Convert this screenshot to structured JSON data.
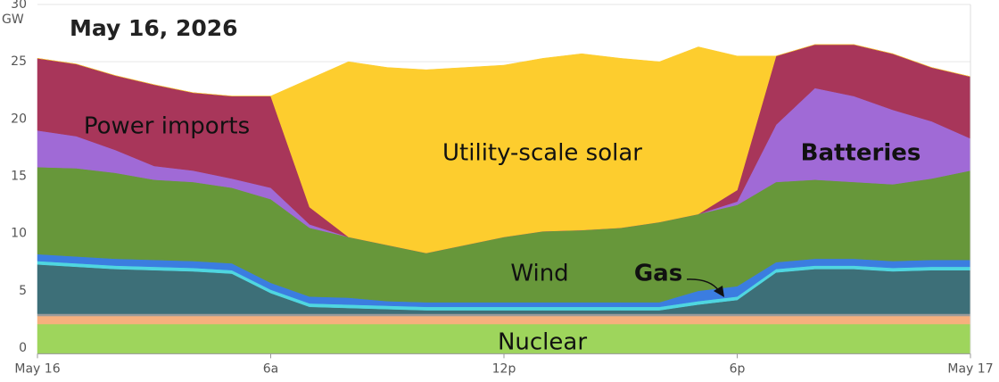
{
  "chart_data": {
    "type": "stacked-area",
    "title": "May 16, 2026",
    "y_unit": "GW",
    "x": [
      0,
      1,
      2,
      3,
      4,
      5,
      6,
      7,
      8,
      9,
      10,
      11,
      12,
      13,
      14,
      15,
      16,
      17,
      18,
      19,
      20,
      21,
      22,
      23,
      24
    ],
    "xlim": [
      0,
      24
    ],
    "xticks": [
      {
        "value": 0,
        "label": "May 16"
      },
      {
        "value": 6,
        "label": "6a"
      },
      {
        "value": 12,
        "label": "12p"
      },
      {
        "value": 18,
        "label": "6p"
      },
      {
        "value": 24,
        "label": "May 17"
      }
    ],
    "ylim": [
      -0.5,
      30
    ],
    "yticks": [
      0,
      5,
      10,
      15,
      20,
      25,
      30
    ],
    "grid": true,
    "series": [
      {
        "name": "Nuclear",
        "color": "#9ed55c",
        "values": [
          2.1,
          2.1,
          2.1,
          2.1,
          2.1,
          2.1,
          2.1,
          2.1,
          2.1,
          2.1,
          2.1,
          2.1,
          2.1,
          2.1,
          2.1,
          2.1,
          2.1,
          2.1,
          2.1,
          2.1,
          2.1,
          2.1,
          2.1,
          2.1,
          2.1
        ]
      },
      {
        "name": null,
        "color": "#f6b07e",
        "values": [
          0.7,
          0.7,
          0.7,
          0.7,
          0.7,
          0.7,
          0.7,
          0.7,
          0.7,
          0.7,
          0.7,
          0.7,
          0.7,
          0.7,
          0.7,
          0.7,
          0.7,
          0.7,
          0.7,
          0.7,
          0.7,
          0.7,
          0.7,
          0.7,
          0.7
        ]
      },
      {
        "name": null,
        "color": "#9a9a9a",
        "values": [
          0.2,
          0.2,
          0.2,
          0.2,
          0.2,
          0.2,
          0.2,
          0.2,
          0.2,
          0.2,
          0.2,
          0.2,
          0.2,
          0.2,
          0.2,
          0.2,
          0.2,
          0.2,
          0.2,
          0.2,
          0.2,
          0.2,
          0.2,
          0.2,
          0.2
        ]
      },
      {
        "name": "Gas",
        "color": "#3d6f78",
        "values": [
          4.3,
          4.1,
          3.9,
          3.8,
          3.7,
          3.5,
          1.8,
          0.6,
          0.5,
          0.4,
          0.3,
          0.3,
          0.3,
          0.3,
          0.3,
          0.3,
          0.3,
          0.8,
          1.2,
          3.6,
          3.9,
          3.9,
          3.7,
          3.8,
          3.8
        ]
      },
      {
        "name": null,
        "color": "#4fd6e0",
        "values": [
          0.3,
          0.3,
          0.3,
          0.3,
          0.3,
          0.3,
          0.3,
          0.3,
          0.3,
          0.3,
          0.3,
          0.3,
          0.3,
          0.3,
          0.3,
          0.3,
          0.3,
          0.3,
          0.3,
          0.3,
          0.3,
          0.3,
          0.3,
          0.3,
          0.3
        ]
      },
      {
        "name": null,
        "color": "#3b7de0",
        "values": [
          0.6,
          0.6,
          0.6,
          0.6,
          0.6,
          0.6,
          0.6,
          0.6,
          0.6,
          0.4,
          0.4,
          0.4,
          0.4,
          0.4,
          0.4,
          0.4,
          0.4,
          0.9,
          0.9,
          0.6,
          0.6,
          0.6,
          0.6,
          0.6,
          0.6
        ]
      },
      {
        "name": "Wind",
        "color": "#67973a",
        "values": [
          7.6,
          7.7,
          7.5,
          7.0,
          6.9,
          6.6,
          7.3,
          6.0,
          5.3,
          4.9,
          4.3,
          5.0,
          5.7,
          6.2,
          6.3,
          6.5,
          7.0,
          6.7,
          7.1,
          7.0,
          6.9,
          6.7,
          6.7,
          7.1,
          7.8
        ]
      },
      {
        "name": "Batteries",
        "color": "#a06ad6",
        "values": [
          3.2,
          2.8,
          2.0,
          1.2,
          1.0,
          0.8,
          1.0,
          0.3,
          0,
          0,
          0,
          0,
          0,
          0,
          0,
          0,
          0,
          0,
          0.3,
          5.0,
          8.0,
          7.5,
          6.5,
          5.0,
          2.8
        ]
      },
      {
        "name": "Power imports",
        "color": "#a8365a",
        "values": [
          6.3,
          6.3,
          6.5,
          7.1,
          6.8,
          7.2,
          8.0,
          1.5,
          0,
          0,
          0,
          0,
          0,
          0,
          0,
          0,
          0,
          0,
          1.0,
          6.0,
          3.8,
          4.5,
          4.9,
          4.7,
          5.4
        ]
      },
      {
        "name": "Utility-scale solar",
        "color": "#fdcd2e",
        "values": [
          0,
          0,
          0,
          0,
          0,
          0,
          0,
          11.2,
          15.3,
          15.5,
          16,
          15.5,
          15,
          15.1,
          15.4,
          14.8,
          14,
          14.6,
          11.7,
          0,
          0,
          0,
          0,
          0,
          0
        ]
      }
    ]
  }
}
